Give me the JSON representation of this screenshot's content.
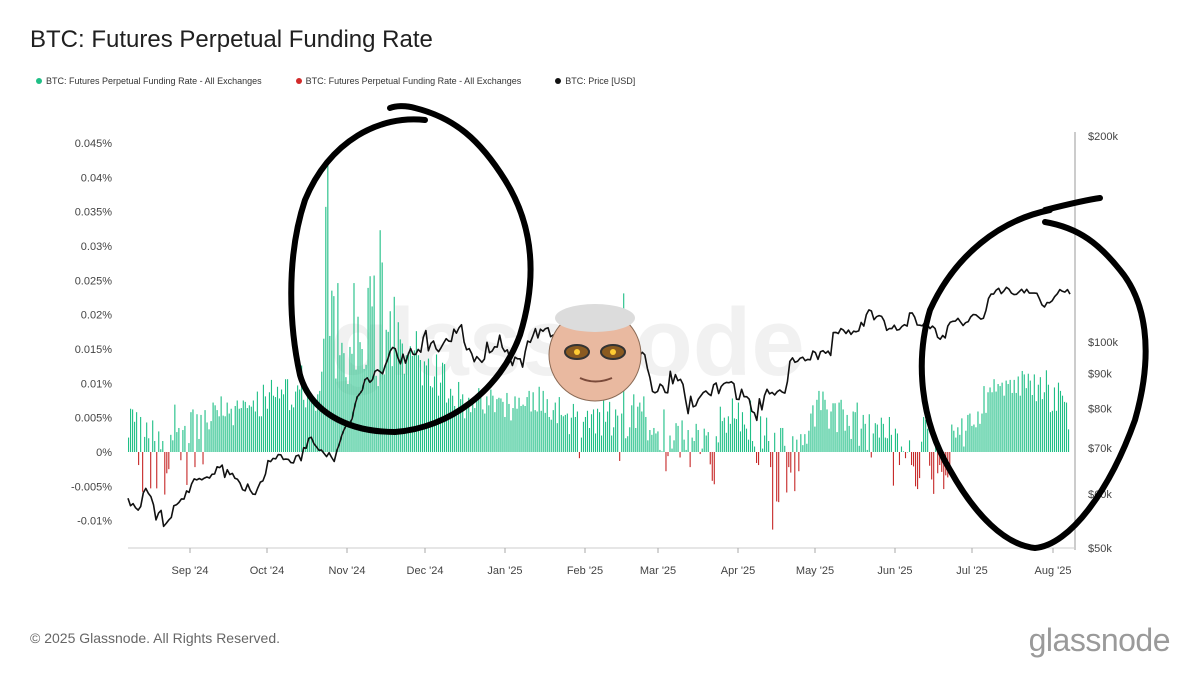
{
  "title": "BTC: Futures Perpetual Funding Rate",
  "legend": [
    {
      "label": "BTC: Futures Perpetual Funding Rate - All Exchanges",
      "color": "#1fbf86"
    },
    {
      "label": "BTC: Futures Perpetual Funding Rate - All Exchanges",
      "color": "#d22a2a"
    },
    {
      "label": "BTC: Price [USD]",
      "color": "#111111"
    }
  ],
  "footer": "© 2025 Glassnode. All Rights Reserved.",
  "brand": "glassnode",
  "watermark": "glassnode",
  "colors": {
    "positive": "#1fbf86",
    "negative": "#c62828",
    "price": "#111111",
    "annotation": "#000000",
    "axis": "#bbbbbb"
  },
  "chart_data": {
    "type": "bar",
    "x_ticks": [
      "Sep '24",
      "Oct '24",
      "Nov '24",
      "Dec '24",
      "Jan '25",
      "Feb '25",
      "Mar '25",
      "Apr '25",
      "May '25",
      "Jun '25",
      "Jul '25",
      "Aug '25"
    ],
    "y_left_ticks": [
      "0.045%",
      "0.04%",
      "0.035%",
      "0.03%",
      "0.025%",
      "0.02%",
      "0.015%",
      "0.01%",
      "0.005%",
      "0%",
      "-0.005%",
      "-0.01%"
    ],
    "y_left_values": [
      0.045,
      0.04,
      0.035,
      0.03,
      0.025,
      0.02,
      0.015,
      0.01,
      0.005,
      0,
      -0.005,
      -0.01
    ],
    "y_right_ticks": [
      "$200k",
      "$100k",
      "$90k",
      "$80k",
      "$70k",
      "$60k",
      "$50k"
    ],
    "y_right_values": [
      200000,
      100000,
      90000,
      80000,
      70000,
      60000,
      50000
    ],
    "y_right_scale": "log",
    "ylim_left": [
      -0.014,
      0.047
    ],
    "ylim_right": [
      50000,
      200000
    ],
    "series": [
      {
        "name": "BTC: Futures Perpetual Funding Rate - All Exchanges",
        "kind": "bar",
        "color_rule": "green if >= 0, red if < 0",
        "values": [
          0.0021,
          0.0063,
          0.0062,
          0.0044,
          0.0058,
          -0.0019,
          0.0051,
          -0.0058,
          0.0022,
          0.0043,
          0.002,
          -0.0053,
          0.0046,
          0.0016,
          -0.0053,
          0.003,
          0.0004,
          0.0016,
          -0.0062,
          -0.0031,
          -0.0025,
          0.0025,
          0.0017,
          0.0069,
          0.0029,
          0.0035,
          -0.0012,
          0.0032,
          0.0038,
          -0.0048,
          0.0013,
          0.0058,
          0.0062,
          -0.0022,
          0.0055,
          0.0019,
          0.0054,
          -0.0018,
          0.0061,
          0.0043,
          0.0033,
          0.0045,
          0.0072,
          0.0068,
          0.0061,
          0.0052,
          0.0081,
          0.0053,
          0.0052,
          0.0072,
          0.0056,
          0.0063,
          0.0039,
          0.0067,
          0.0075,
          0.0063,
          0.0064,
          0.0075,
          0.0073,
          0.0064,
          0.0068,
          0.0066,
          0.0075,
          0.0059,
          0.0088,
          0.0052,
          0.0052,
          0.0098,
          0.0081,
          0.0063,
          0.0087,
          0.0105,
          0.0082,
          0.008,
          0.0095,
          0.0078,
          0.0091,
          0.0084,
          0.0106,
          0.0106,
          0.0061,
          0.0069,
          0.0065,
          0.0088,
          0.0097,
          0.0091,
          0.0126,
          0.0076,
          0.0065,
          0.0087,
          0.0082,
          0.0072,
          0.0074,
          0.006,
          0.0084,
          0.0089,
          0.0117,
          0.0165,
          0.0357,
          0.0423,
          0.0169,
          0.0235,
          0.0227,
          0.0107,
          0.0246,
          0.0141,
          0.0159,
          0.0144,
          0.0109,
          0.0099,
          0.0153,
          0.0143,
          0.0246,
          0.012,
          0.0197,
          0.016,
          0.015,
          0.0121,
          0.0127,
          0.0239,
          0.0256,
          0.0212,
          0.0257,
          0.0111,
          0.0096,
          0.0323,
          0.0276,
          0.0113,
          0.0178,
          0.0175,
          0.0205,
          0.0125,
          0.0226,
          0.0145,
          0.0189,
          0.0164,
          0.0158,
          0.0114,
          0.0141,
          0.0145,
          0.0154,
          0.014,
          0.0148,
          0.0176,
          0.0141,
          0.0134,
          0.0097,
          0.0132,
          0.0126,
          0.0136,
          0.0096,
          0.0094,
          0.011,
          0.0142,
          0.0082,
          0.0101,
          0.013,
          0.0128,
          0.0072,
          0.0078,
          0.0092,
          0.0082,
          0.0067,
          0.0053,
          0.0102,
          0.0077,
          0.0084,
          0.0049,
          0.0071,
          0.0079,
          0.0058,
          0.0074,
          0.0064,
          0.0083,
          0.0093,
          0.008,
          0.0062,
          0.0056,
          0.0081,
          0.0068,
          0.0091,
          0.0082,
          0.0058,
          0.0077,
          0.0079,
          0.0078,
          0.0073,
          0.0051,
          0.0086,
          0.007,
          0.0046,
          0.0064,
          0.0081,
          0.0063,
          0.0079,
          0.0067,
          0.0069,
          0.0067,
          0.008,
          0.0089,
          0.0059,
          0.0087,
          0.0061,
          0.0059,
          0.0095,
          0.006,
          0.0089,
          0.0057,
          0.0077,
          0.0051,
          0.0047,
          0.0061,
          0.0072,
          0.0042,
          0.008,
          0.0054,
          0.0052,
          0.0054,
          0.0056,
          0.0026,
          0.005,
          0.007,
          0.0051,
          0.0059,
          -0.0009,
          0.0021,
          0.0044,
          0.0051,
          0.006,
          0.0035,
          0.0055,
          0.0062,
          0.0027,
          0.0063,
          0.0058,
          0.0024,
          0.008,
          0.0044,
          0.0059,
          0.0073,
          0.0024,
          0.0036,
          0.0062,
          0.0053,
          -0.0013,
          0.0056,
          0.0231,
          0.002,
          0.0023,
          0.0036,
          0.0068,
          0.0084,
          0.0035,
          0.0066,
          0.0072,
          0.0059,
          0.0081,
          0.0051,
          0.0017,
          0.0032,
          0.0025,
          0.0035,
          0.0027,
          0.003,
          0.0003,
          0.0001,
          0.0062,
          -0.0028,
          -0.0006,
          0.0024,
          0.0005,
          0.0017,
          0.0042,
          0.0038,
          -0.0008,
          0.0046,
          0.0018,
          0.0003,
          0.0032,
          -0.0022,
          0.0021,
          0.0016,
          0.0041,
          0.0032,
          -0.0003,
          0.0005,
          0.0034,
          0.0024,
          0.0029,
          -0.0018,
          -0.0042,
          -0.0047,
          0.0023,
          0.0014,
          0.0066,
          0.0045,
          0.005,
          0.0028,
          0.0052,
          0.0041,
          0.0078,
          0.0049,
          0.0048,
          0.0072,
          0.003,
          0.0058,
          0.004,
          0.0034,
          0.0018,
          0.0075,
          0.0016,
          0.0008,
          -0.0016,
          -0.0019,
          0.0052,
          0.0005,
          0.0024,
          0.005,
          0.0016,
          -0.0022,
          -0.0113,
          0.0028,
          -0.0072,
          -0.0073,
          0.0035,
          0.0035,
          0.0009,
          -0.0059,
          -0.0022,
          -0.003,
          0.0023,
          -0.0057,
          0.0018,
          -0.0028,
          0.0026,
          0.001,
          0.0026,
          0.0012,
          0.0031,
          0.0056,
          0.0068,
          0.0037,
          0.0076,
          0.0089,
          0.0061,
          0.0088,
          0.0076,
          0.0062,
          0.0034,
          0.0059,
          0.0071,
          0.0071,
          0.0029,
          0.0072,
          0.0076,
          0.0062,
          0.0031,
          0.0054,
          0.0038,
          0.0019,
          0.0059,
          0.0058,
          0.0072,
          0.0009,
          0.0034,
          0.0054,
          0.0041,
          0.0003,
          0.0055,
          -0.0008,
          0.0027,
          0.0042,
          0.004,
          0.0021,
          0.005,
          0.0041,
          0.0021,
          0.002,
          0.0051,
          0.0025,
          -0.0049,
          0.0034,
          0.0027,
          -0.0019,
          0.0008,
          0.0001,
          -0.0009,
          0.0,
          0.0017,
          -0.0019,
          -0.0021,
          -0.005,
          -0.0054,
          -0.0038,
          0.0015,
          0.0051,
          0.0047,
          0.0034,
          -0.002,
          -0.004,
          -0.0061,
          0.0012,
          -0.0031,
          -0.0019,
          -0.0029,
          -0.0054,
          -0.0034,
          -0.0037,
          -0.0032,
          0.004,
          0.0031,
          0.0021,
          0.0036,
          0.0025,
          0.0049,
          0.0008,
          0.0031,
          0.0054,
          0.0056,
          0.0038,
          0.004,
          0.0036,
          0.0059,
          0.0041,
          0.0056,
          0.0096,
          0.0057,
          0.0087,
          0.0094,
          0.0087,
          0.0106,
          0.0088,
          0.0099,
          0.0096,
          0.0101,
          0.0082,
          0.0104,
          0.0099,
          0.0105,
          0.0086,
          0.0105,
          0.0086,
          0.011,
          0.0082,
          0.0118,
          0.0113,
          0.0093,
          0.0114,
          0.0104,
          0.0083,
          0.0113,
          0.0074,
          0.0098,
          0.0109,
          0.0077,
          0.0087,
          0.0119,
          0.0098,
          0.0058,
          0.006,
          0.0094,
          0.006,
          0.0101,
          0.0089,
          0.0082,
          0.0073,
          0.0072,
          0.0033
        ]
      },
      {
        "name": "BTC: Price [USD]",
        "kind": "line",
        "axis": "right",
        "values": [
          59109,
          57652,
          58063,
          57245,
          56800,
          57489,
          60202,
          61099,
          60090,
          59442,
          57848,
          54967,
          56250,
          56739,
          53773,
          54321,
          54916,
          55426,
          57637,
          57831,
          58276,
          58991,
          58937,
          60590,
          60284,
          62040,
          63081,
          62868,
          63177,
          62887,
          63249,
          63487,
          63287,
          64073,
          64133,
          65700,
          65528,
          66083,
          63407,
          65073,
          64033,
          64264,
          63213,
          63010,
          62203,
          60840,
          60611,
          61990,
          60733,
          59946,
          59887,
          61208,
          62410,
          62665,
          64134,
          67087,
          66868,
          67588,
          67484,
          68459,
          68424,
          67357,
          67444,
          67359,
          66653,
          66582,
          68144,
          68339,
          67072,
          70072,
          69957,
          72336,
          72571,
          71046,
          70299,
          69492,
          69505,
          68734,
          68003,
          68911,
          67797,
          66898,
          69329,
          70938,
          73094,
          74651,
          75844,
          75924,
          77140,
          80446,
          83082,
          84000,
          85000,
          88064,
          88611,
          87329,
          88100,
          90599,
          91073,
          90517,
          89850,
          92300,
          94360,
          97030,
          98200,
          97775,
          94820,
          92930,
          95970,
          93150,
          95810,
          97800,
          95930,
          95900,
          97530,
          96640,
          101600,
          103900,
          97070,
          99580,
          100340,
          97700,
          96800,
          98200,
          99700,
          101100,
          100300,
          100200,
          104400,
          103000,
          104900,
          106000,
          100000,
          97400,
          97800,
          96160,
          93600,
          95200,
          94300,
          93400,
          94400,
          99900,
          96460,
          97000,
          98400,
          98300,
          102300,
          98200,
          96800,
          97400,
          94700,
          92400,
          95000,
          94500,
          94500,
          91900,
          96800,
          100300,
          99900,
          102000,
          104600,
          101400,
          104400,
          103700,
          104600,
          104900,
          101800,
          102400,
          102000,
          100100,
          101600,
          104700,
          102400,
          97600,
          98000,
          94200,
          102500,
          101300,
          97700,
          99000,
          96500,
          98100,
          96600,
          96300,
          98200,
          97600,
          95800,
          97000,
          97400,
          95800,
          95700,
          96400,
          97000,
          97300,
          96000,
          98100,
          96200,
          95800,
          96300,
          96500,
          98300,
          95500,
          96600,
          95800,
          91500,
          88700,
          84700,
          84300,
          84700,
          86800,
          86200,
          84400,
          84300,
          90600,
          86900,
          89600,
          87800,
          88200,
          86700,
          82300,
          78600,
          83300,
          80400,
          80700,
          82500,
          83400,
          84400,
          84800,
          84000,
          83500,
          86600,
          87100,
          84100,
          86100,
          86900,
          87300,
          87200,
          87500,
          86900,
          82500,
          82400,
          85300,
          83200,
          83200,
          82500,
          79200,
          78800,
          76800,
          82600,
          79600,
          83500,
          85300,
          84000,
          84400,
          83700,
          84600,
          85100,
          84500,
          84200,
          87500,
          93700,
          94800,
          93400,
          93700,
          94700,
          95000,
          93900,
          94300,
          94200,
          97000,
          96500,
          94300,
          96800,
          97100,
          96300,
          97000,
          95600,
          103200,
          103300,
          102900,
          104600,
          104100,
          102900,
          104100,
          102600,
          103700,
          103500,
          103800,
          106800,
          105500,
          109600,
          111400,
          111000,
          107800,
          108900,
          109300,
          109000,
          107400,
          104000,
          104600,
          104600,
          105800,
          104100,
          104300,
          105400,
          106000,
          105500,
          110200,
          110300,
          108700,
          105900,
          105800,
          105600,
          106800,
          106000,
          104600,
          105500,
          104600,
          101600,
          100900,
          102200,
          101400,
          105500,
          106900,
          107200,
          107300,
          108300,
          107000,
          105700,
          106700,
          107100,
          108800,
          109700,
          109600,
          108800,
          108000,
          108300,
          111300,
          115800,
          117500,
          117500,
          119100,
          119800,
          117700,
          118700,
          120200,
          119500,
          117900,
          117300,
          117400,
          118400,
          119400,
          118000,
          119400,
          117900,
          117900,
          117900,
          117800,
          115700,
          113300,
          112500,
          114200,
          114100,
          114900,
          116500,
          117600,
          119300,
          118600,
          118300,
          119300,
          117500
        ]
      }
    ],
    "notes": "Hand-drawn black circles highlight Nov–Dec 2024 and Jul–Aug 2025 funding spikes; a cartoon face sticker overlays mid-chart."
  }
}
